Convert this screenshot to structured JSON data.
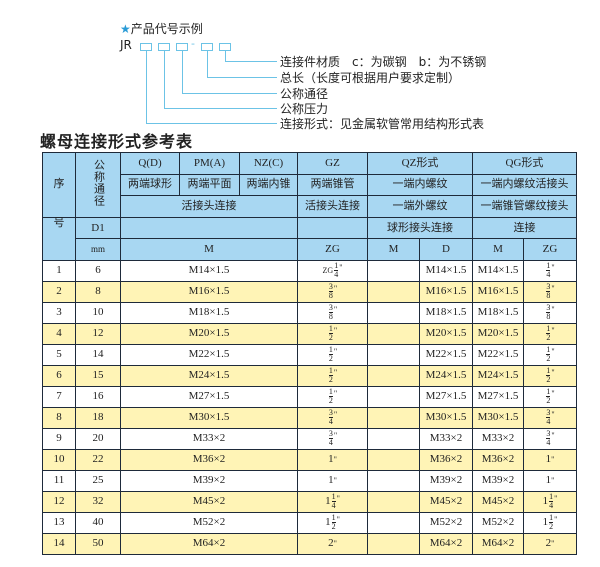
{
  "example": {
    "title": "产品代号示例",
    "code_prefix": "JR",
    "dash": "-",
    "labels": [
      "连接件材质　c：为碳钢　b：为不锈钢",
      "总长（长度可根据用户要求定制）",
      "公称通径",
      "公称压力",
      "连接形式：见金属软管常用结构形式表"
    ]
  },
  "section_title": "螺母连接形式参考表",
  "header": {
    "seq": "序",
    "seq2": "号",
    "nominal": "公称通径",
    "d1": "D1",
    "mm": "mm",
    "qd": "Q(D)",
    "pm": "PM(A)",
    "nz": "NZ(C)",
    "gz": "GZ",
    "qz": "QZ形式",
    "qg": "QG形式",
    "qd_desc": "两端球形",
    "pm_desc": "两端平面",
    "nz_desc": "两端内锥",
    "gz_desc": "两端锥管",
    "qz_desc": "一端内螺纹",
    "qg_desc": "一端内螺纹活接头",
    "huo_conn": "活接头连接",
    "gz_conn": "活接头连接",
    "qz_conn": "一端外螺纹",
    "qg_conn": "一端锥管螺纹接头",
    "qz_conn2": "球形接头连接",
    "qg_conn2": "连接",
    "m": "M",
    "zg": "ZG",
    "qz_m": "M",
    "qz_d": "D",
    "qg_m": "M",
    "qg_zg": "ZG"
  },
  "rows": [
    {
      "n": "1",
      "d1": "6",
      "m": "M14×1.5",
      "zg": {
        "prefix": "ZG",
        "whole": "",
        "num": "1",
        "den": "4"
      },
      "qz_d": "M14×1.5",
      "qg_m": "M14×1.5",
      "qg_zg": {
        "whole": "",
        "num": "1",
        "den": "4"
      }
    },
    {
      "n": "2",
      "d1": "8",
      "m": "M16×1.5",
      "zg": {
        "whole": "",
        "num": "3",
        "den": "8"
      },
      "qz_d": "M16×1.5",
      "qg_m": "M16×1.5",
      "qg_zg": {
        "whole": "",
        "num": "3",
        "den": "8"
      }
    },
    {
      "n": "3",
      "d1": "10",
      "m": "M18×1.5",
      "zg": {
        "whole": "",
        "num": "3",
        "den": "8"
      },
      "qz_d": "M18×1.5",
      "qg_m": "M18×1.5",
      "qg_zg": {
        "whole": "",
        "num": "3",
        "den": "8"
      }
    },
    {
      "n": "4",
      "d1": "12",
      "m": "M20×1.5",
      "zg": {
        "whole": "",
        "num": "1",
        "den": "2"
      },
      "qz_d": "M20×1.5",
      "qg_m": "M20×1.5",
      "qg_zg": {
        "whole": "",
        "num": "1",
        "den": "2"
      }
    },
    {
      "n": "5",
      "d1": "14",
      "m": "M22×1.5",
      "zg": {
        "whole": "",
        "num": "1",
        "den": "2"
      },
      "qz_d": "M22×1.5",
      "qg_m": "M22×1.5",
      "qg_zg": {
        "whole": "",
        "num": "1",
        "den": "2"
      }
    },
    {
      "n": "6",
      "d1": "15",
      "m": "M24×1.5",
      "zg": {
        "whole": "",
        "num": "1",
        "den": "2"
      },
      "qz_d": "M24×1.5",
      "qg_m": "M24×1.5",
      "qg_zg": {
        "whole": "",
        "num": "1",
        "den": "2"
      }
    },
    {
      "n": "7",
      "d1": "16",
      "m": "M27×1.5",
      "zg": {
        "whole": "",
        "num": "1",
        "den": "2"
      },
      "qz_d": "M27×1.5",
      "qg_m": "M27×1.5",
      "qg_zg": {
        "whole": "",
        "num": "1",
        "den": "2"
      }
    },
    {
      "n": "8",
      "d1": "18",
      "m": "M30×1.5",
      "zg": {
        "whole": "",
        "num": "3",
        "den": "4"
      },
      "qz_d": "M30×1.5",
      "qg_m": "M30×1.5",
      "qg_zg": {
        "whole": "",
        "num": "3",
        "den": "4"
      }
    },
    {
      "n": "9",
      "d1": "20",
      "m": "M33×2",
      "zg": {
        "whole": "",
        "num": "3",
        "den": "4"
      },
      "qz_d": "M33×2",
      "qg_m": "M33×2",
      "qg_zg": {
        "whole": "",
        "num": "3",
        "den": "4"
      }
    },
    {
      "n": "10",
      "d1": "22",
      "m": "M36×2",
      "zg": {
        "whole": "1",
        "num": "",
        "den": ""
      },
      "qz_d": "M36×2",
      "qg_m": "M36×2",
      "qg_zg": {
        "whole": "1",
        "num": "",
        "den": ""
      }
    },
    {
      "n": "11",
      "d1": "25",
      "m": "M39×2",
      "zg": {
        "whole": "1",
        "num": "",
        "den": ""
      },
      "qz_d": "M39×2",
      "qg_m": "M39×2",
      "qg_zg": {
        "whole": "1",
        "num": "",
        "den": ""
      }
    },
    {
      "n": "12",
      "d1": "32",
      "m": "M45×2",
      "zg": {
        "whole": "1",
        "num": "1",
        "den": "4"
      },
      "qz_d": "M45×2",
      "qg_m": "M45×2",
      "qg_zg": {
        "whole": "1",
        "num": "1",
        "den": "4"
      }
    },
    {
      "n": "13",
      "d1": "40",
      "m": "M52×2",
      "zg": {
        "whole": "1",
        "num": "1",
        "den": "2"
      },
      "qz_d": "M52×2",
      "qg_m": "M52×2",
      "qg_zg": {
        "whole": "1",
        "num": "1",
        "den": "2"
      }
    },
    {
      "n": "14",
      "d1": "50",
      "m": "M64×2",
      "zg": {
        "whole": "2",
        "num": "",
        "den": ""
      },
      "qz_d": "M64×2",
      "qg_m": "M64×2",
      "qg_zg": {
        "whole": "2",
        "num": "",
        "den": ""
      }
    }
  ],
  "inch_mark": "\"",
  "colors": {
    "header_bg": "#a8d7f2",
    "row_alt": "#fff4b6",
    "accent": "#2a9bd6"
  }
}
